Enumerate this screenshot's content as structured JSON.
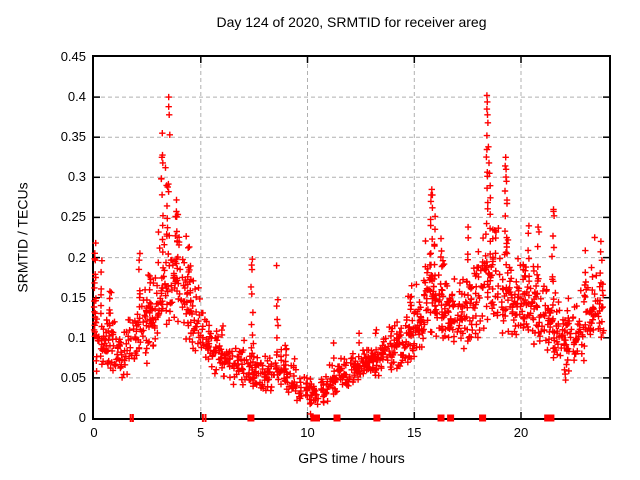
{
  "chart_data": {
    "type": "scatter",
    "title": "Day 124 of 2020, SRMTID for receiver areg",
    "xlabel": "GPS time / hours",
    "ylabel": "SRMTID / TECUs",
    "xlim": [
      0,
      24.12
    ],
    "ylim": [
      0,
      0.45
    ],
    "xticks": [
      0,
      5,
      10,
      15,
      20
    ],
    "xtick_labels": [
      "0",
      "5",
      "10",
      "15",
      "20"
    ],
    "yticks": [
      0,
      0.05,
      0.1,
      0.15,
      0.2,
      0.25,
      0.3,
      0.35,
      0.4,
      0.45
    ],
    "ytick_labels": [
      "0",
      "0.05",
      "0.1",
      "0.15",
      "0.2",
      "0.25",
      "0.3",
      "0.35",
      "0.4",
      "0.45"
    ],
    "grid": true,
    "legend": "none",
    "colors": {
      "marker": "#ff0000",
      "grid": "#b0b0b0",
      "axis": "#000000",
      "background": "#ffffff"
    },
    "marker": {
      "shape": "plus",
      "size": 7
    },
    "series_name": "SRMTID",
    "zero_markers": {
      "comment": "red markers sitting on the y=0 baseline, in GPS hours",
      "squares": [
        7.35,
        10.3,
        10.42,
        11.38,
        13.25,
        16.25,
        16.7,
        18.2,
        21.25,
        21.4
      ],
      "ticks": [
        1.72,
        1.82,
        5.1,
        5.22
      ]
    },
    "outliers": [
      [
        3.5,
        0.4
      ],
      [
        3.5,
        0.388
      ],
      [
        3.52,
        0.378
      ],
      [
        3.2,
        0.355
      ],
      [
        3.55,
        0.353
      ],
      [
        3.18,
        0.325
      ],
      [
        3.22,
        0.318
      ],
      [
        3.35,
        0.312
      ],
      [
        3.15,
        0.298
      ],
      [
        3.4,
        0.29
      ],
      [
        3.45,
        0.288
      ],
      [
        18.4,
        0.402
      ],
      [
        18.42,
        0.394
      ],
      [
        18.4,
        0.385
      ],
      [
        18.43,
        0.378
      ],
      [
        18.45,
        0.368
      ],
      [
        18.4,
        0.352
      ],
      [
        18.47,
        0.338
      ],
      [
        18.5,
        0.318
      ],
      [
        18.52,
        0.305
      ],
      [
        19.28,
        0.325
      ],
      [
        19.3,
        0.31
      ],
      [
        19.32,
        0.295
      ],
      [
        19.25,
        0.283
      ],
      [
        15.82,
        0.285
      ],
      [
        15.85,
        0.278
      ],
      [
        15.78,
        0.27
      ],
      [
        8.55,
        0.19
      ],
      [
        7.42,
        0.198
      ],
      [
        7.4,
        0.185
      ],
      [
        0.08,
        0.218
      ],
      [
        2.15,
        0.205
      ],
      [
        20.8,
        0.238
      ],
      [
        17.52,
        0.238
      ],
      [
        23.45,
        0.225
      ],
      [
        21.52,
        0.26
      ],
      [
        21.55,
        0.252
      ]
    ],
    "scatter_model": {
      "comment": "dense noisy cloud reconstructed from per-half-hour envelope [h0,h1,yLow,yHigh,count] and vertical spike columns [x,yMin,yMax,count]",
      "seed": 124,
      "envelope": [
        [
          0.0,
          0.1,
          0.09,
          0.215,
          12
        ],
        [
          0.1,
          0.5,
          0.055,
          0.145,
          26
        ],
        [
          0.5,
          1.0,
          0.05,
          0.165,
          30
        ],
        [
          1.0,
          1.5,
          0.042,
          0.12,
          26
        ],
        [
          1.5,
          2.0,
          0.05,
          0.135,
          26
        ],
        [
          2.0,
          2.5,
          0.06,
          0.175,
          28
        ],
        [
          2.5,
          3.0,
          0.075,
          0.195,
          30
        ],
        [
          3.0,
          3.5,
          0.095,
          0.26,
          36
        ],
        [
          3.5,
          4.0,
          0.105,
          0.27,
          38
        ],
        [
          4.0,
          4.5,
          0.095,
          0.24,
          34
        ],
        [
          4.5,
          5.0,
          0.075,
          0.185,
          30
        ],
        [
          5.0,
          5.5,
          0.065,
          0.15,
          28
        ],
        [
          5.5,
          6.0,
          0.055,
          0.125,
          28
        ],
        [
          6.0,
          6.5,
          0.045,
          0.115,
          26
        ],
        [
          6.5,
          7.0,
          0.038,
          0.095,
          26
        ],
        [
          7.0,
          7.5,
          0.035,
          0.1,
          26
        ],
        [
          7.5,
          8.0,
          0.032,
          0.09,
          26
        ],
        [
          8.0,
          8.5,
          0.03,
          0.09,
          26
        ],
        [
          8.5,
          9.0,
          0.03,
          0.095,
          26
        ],
        [
          9.0,
          9.5,
          0.027,
          0.085,
          24
        ],
        [
          9.5,
          10.0,
          0.018,
          0.065,
          22
        ],
        [
          10.0,
          10.5,
          0.012,
          0.055,
          20
        ],
        [
          10.5,
          11.0,
          0.018,
          0.06,
          20
        ],
        [
          11.0,
          11.5,
          0.028,
          0.075,
          24
        ],
        [
          11.5,
          12.0,
          0.035,
          0.08,
          26
        ],
        [
          12.0,
          12.5,
          0.042,
          0.09,
          28
        ],
        [
          12.5,
          13.0,
          0.05,
          0.095,
          30
        ],
        [
          13.0,
          13.5,
          0.052,
          0.105,
          30
        ],
        [
          13.5,
          14.0,
          0.055,
          0.115,
          30
        ],
        [
          14.0,
          14.5,
          0.06,
          0.13,
          32
        ],
        [
          14.5,
          15.0,
          0.065,
          0.155,
          34
        ],
        [
          15.0,
          15.5,
          0.08,
          0.2,
          36
        ],
        [
          15.5,
          16.0,
          0.1,
          0.245,
          38
        ],
        [
          16.0,
          16.5,
          0.095,
          0.215,
          34
        ],
        [
          16.5,
          17.0,
          0.085,
          0.185,
          32
        ],
        [
          17.0,
          17.5,
          0.085,
          0.18,
          32
        ],
        [
          17.5,
          18.0,
          0.09,
          0.21,
          32
        ],
        [
          18.0,
          18.5,
          0.105,
          0.26,
          34
        ],
        [
          18.5,
          19.0,
          0.11,
          0.26,
          34
        ],
        [
          19.0,
          19.5,
          0.105,
          0.24,
          34
        ],
        [
          19.5,
          20.0,
          0.095,
          0.215,
          34
        ],
        [
          20.0,
          20.5,
          0.09,
          0.215,
          34
        ],
        [
          20.5,
          21.0,
          0.085,
          0.21,
          32
        ],
        [
          21.0,
          21.5,
          0.075,
          0.195,
          32
        ],
        [
          21.5,
          22.0,
          0.065,
          0.17,
          30
        ],
        [
          22.0,
          22.5,
          0.055,
          0.15,
          30
        ],
        [
          22.5,
          23.0,
          0.07,
          0.165,
          30
        ],
        [
          23.0,
          23.5,
          0.085,
          0.195,
          28
        ],
        [
          23.5,
          23.9,
          0.09,
          0.21,
          18
        ]
      ],
      "spikes": [
        [
          0.05,
          0.1,
          0.215,
          8
        ],
        [
          0.35,
          0.13,
          0.2,
          5
        ],
        [
          0.7,
          0.1,
          0.165,
          6
        ],
        [
          2.1,
          0.09,
          0.205,
          7
        ],
        [
          2.65,
          0.12,
          0.19,
          5
        ],
        [
          3.2,
          0.2,
          0.33,
          6
        ],
        [
          3.45,
          0.22,
          0.3,
          6
        ],
        [
          3.9,
          0.16,
          0.285,
          7
        ],
        [
          4.5,
          0.1,
          0.2,
          6
        ],
        [
          7.4,
          0.06,
          0.195,
          8
        ],
        [
          8.6,
          0.07,
          0.155,
          7
        ],
        [
          9.0,
          0.05,
          0.1,
          5
        ],
        [
          10.1,
          0.005,
          0.04,
          4
        ],
        [
          11.2,
          0.035,
          0.095,
          5
        ],
        [
          12.4,
          0.05,
          0.115,
          5
        ],
        [
          13.2,
          0.055,
          0.12,
          5
        ],
        [
          14.9,
          0.08,
          0.175,
          6
        ],
        [
          15.8,
          0.14,
          0.285,
          10
        ],
        [
          15.95,
          0.12,
          0.26,
          8
        ],
        [
          16.3,
          0.1,
          0.24,
          6
        ],
        [
          17.5,
          0.11,
          0.235,
          7
        ],
        [
          18.4,
          0.24,
          0.345,
          8
        ],
        [
          18.55,
          0.2,
          0.3,
          6
        ],
        [
          19.3,
          0.2,
          0.325,
          7
        ],
        [
          20.35,
          0.15,
          0.255,
          6
        ],
        [
          20.8,
          0.11,
          0.235,
          7
        ],
        [
          21.5,
          0.12,
          0.26,
          8
        ],
        [
          22.1,
          0.04,
          0.1,
          5
        ],
        [
          23.0,
          0.1,
          0.215,
          6
        ],
        [
          23.75,
          0.1,
          0.228,
          7
        ]
      ]
    }
  }
}
